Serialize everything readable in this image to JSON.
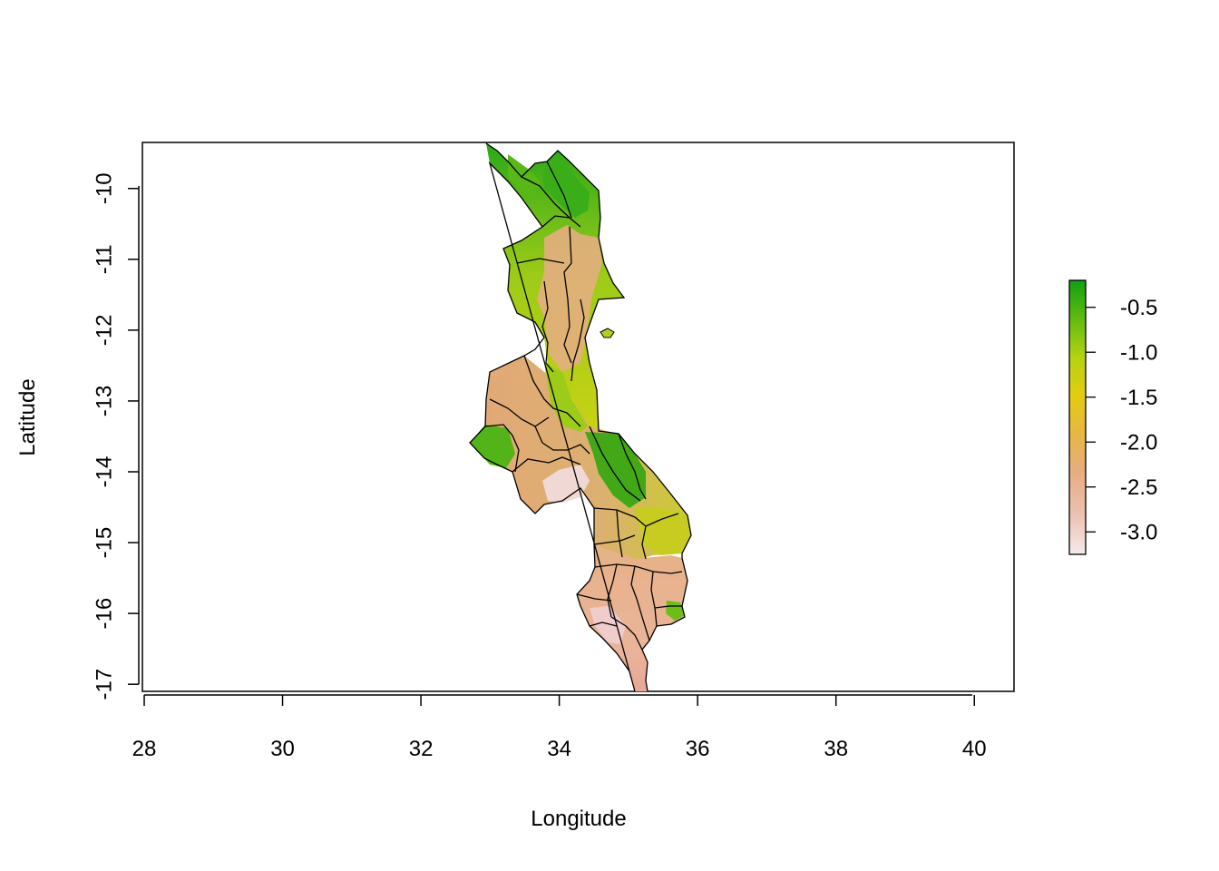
{
  "chart_data": {
    "type": "raster-map",
    "title": "",
    "xlabel": "Longitude",
    "ylabel": "Latitude",
    "xlim": [
      28,
      40.6
    ],
    "ylim": [
      -17.1,
      -9.35
    ],
    "x_ticks": [
      28,
      30,
      32,
      34,
      36,
      38,
      40
    ],
    "y_ticks": [
      -10,
      -11,
      -12,
      -13,
      -14,
      -15,
      -16,
      -17
    ],
    "x_tick_labels": [
      "28",
      "30",
      "32",
      "34",
      "36",
      "38",
      "40"
    ],
    "y_tick_labels": [
      "-10",
      "-11",
      "-12",
      "-13",
      "-14",
      "-15",
      "-16",
      "-17"
    ],
    "legend": {
      "position": "right",
      "range": [
        -3.25,
        -0.2
      ],
      "ticks": [
        -0.5,
        -1.0,
        -1.5,
        -2.0,
        -2.5,
        -3.0
      ],
      "tick_labels": [
        "-0.5",
        "-1.0",
        "-1.5",
        "-2.0",
        "-2.5",
        "-3.0"
      ],
      "colors": [
        "#f5eaea",
        "#e8b090",
        "#e3a860",
        "#e8c020",
        "#c8d410",
        "#70c010",
        "#10a010"
      ]
    },
    "grid": false
  }
}
